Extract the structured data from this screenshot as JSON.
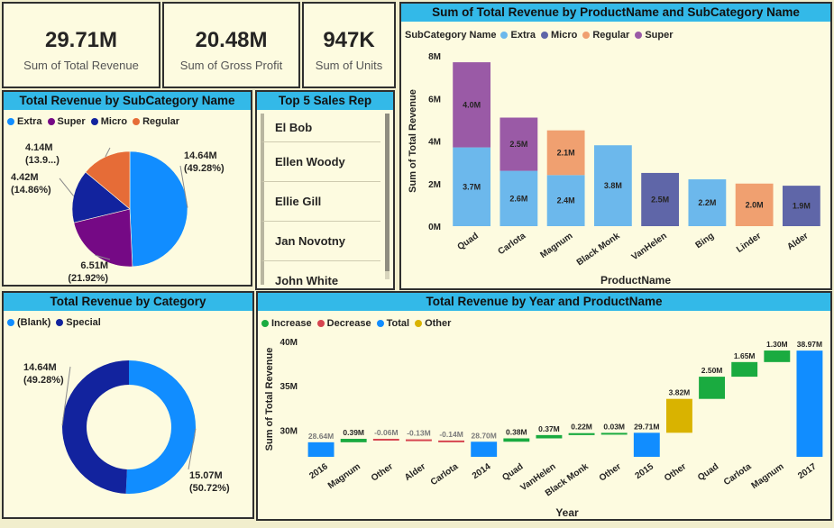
{
  "kpis": [
    {
      "value": "29.71M",
      "label": "Sum of Total Revenue"
    },
    {
      "value": "20.48M",
      "label": "Sum of Gross Profit"
    },
    {
      "value": "947K",
      "label": "Sum of Units"
    }
  ],
  "pie_panel": {
    "title": "Total Revenue by SubCategory Name",
    "legend": [
      {
        "name": "Extra",
        "color": "#118dff"
      },
      {
        "name": "Super",
        "color": "#750985"
      },
      {
        "name": "Micro",
        "color": "#12239e"
      },
      {
        "name": "Regular",
        "color": "#e66c37"
      }
    ]
  },
  "sales_rep_panel": {
    "title": "Top 5 Sales Rep",
    "reps": [
      "El Bob",
      "Ellen Woody",
      "Ellie Gill",
      "Jan Novotny",
      "John White"
    ]
  },
  "bar_panel": {
    "title": "Sum of Total Revenue by ProductName and SubCategory Name",
    "legend_title": "SubCategory Name",
    "legend": [
      {
        "name": "Extra",
        "color": "#6cb8ec"
      },
      {
        "name": "Micro",
        "color": "#5f66a8"
      },
      {
        "name": "Regular",
        "color": "#f0a070"
      },
      {
        "name": "Super",
        "color": "#9a5aa6"
      }
    ]
  },
  "donut_panel": {
    "title": "Total Revenue by Category",
    "legend": [
      {
        "name": "(Blank)",
        "color": "#118dff"
      },
      {
        "name": "Special",
        "color": "#12239e"
      }
    ]
  },
  "waterfall_panel": {
    "title": "Total Revenue by Year and ProductName",
    "legend": [
      {
        "name": "Increase",
        "color": "#1aab40"
      },
      {
        "name": "Decrease",
        "color": "#d64550"
      },
      {
        "name": "Total",
        "color": "#118dff"
      },
      {
        "name": "Other",
        "color": "#d9b300"
      }
    ]
  },
  "chart_data": [
    {
      "type": "pie",
      "title": "Total Revenue by SubCategory Name",
      "slices": [
        {
          "name": "Extra",
          "value": 14.64,
          "label": "14.64M",
          "pct": "(49.28%)",
          "color": "#118dff"
        },
        {
          "name": "Super",
          "value": 6.51,
          "label": "6.51M",
          "pct": "(21.92%)",
          "color": "#750985"
        },
        {
          "name": "Micro",
          "value": 4.42,
          "label": "4.42M",
          "pct": "(14.86%)",
          "color": "#12239e"
        },
        {
          "name": "Regular",
          "value": 4.14,
          "label": "4.14M",
          "pct": "(13.9...)",
          "color": "#e66c37"
        }
      ]
    },
    {
      "type": "bar",
      "stacked": true,
      "title": "Sum of Total Revenue by ProductName and SubCategory Name",
      "xlabel": "ProductName",
      "ylabel": "Sum of Total Revenue",
      "ylim": [
        0,
        8
      ],
      "yticks": [
        "0M",
        "2M",
        "4M",
        "6M",
        "8M"
      ],
      "categories": [
        "Quad",
        "Carlota",
        "Magnum",
        "Black Monk",
        "VanHelen",
        "Bing",
        "Linder",
        "Alder"
      ],
      "segments": [
        [
          {
            "sub": "Extra",
            "value": 3.7,
            "label": "3.7M"
          },
          {
            "sub": "Super",
            "value": 4.0,
            "label": "4.0M"
          }
        ],
        [
          {
            "sub": "Extra",
            "value": 2.6,
            "label": "2.6M"
          },
          {
            "sub": "Super",
            "value": 2.5,
            "label": "2.5M"
          }
        ],
        [
          {
            "sub": "Extra",
            "value": 2.4,
            "label": "2.4M"
          },
          {
            "sub": "Regular",
            "value": 2.1,
            "label": "2.1M"
          }
        ],
        [
          {
            "sub": "Extra",
            "value": 3.8,
            "label": "3.8M"
          }
        ],
        [
          {
            "sub": "Micro",
            "value": 2.5,
            "label": "2.5M"
          }
        ],
        [
          {
            "sub": "Extra",
            "value": 2.2,
            "label": "2.2M"
          }
        ],
        [
          {
            "sub": "Regular",
            "value": 2.0,
            "label": "2.0M"
          }
        ],
        [
          {
            "sub": "Micro",
            "value": 1.9,
            "label": "1.9M"
          }
        ]
      ],
      "colors": {
        "Extra": "#6cb8ec",
        "Micro": "#5f66a8",
        "Regular": "#f0a070",
        "Super": "#9a5aa6"
      }
    },
    {
      "type": "pie",
      "donut": true,
      "title": "Total Revenue by Category",
      "slices": [
        {
          "name": "(Blank)",
          "value": 15.07,
          "label": "15.07M",
          "pct": "(50.72%)",
          "color": "#118dff"
        },
        {
          "name": "Special",
          "value": 14.64,
          "label": "14.64M",
          "pct": "(49.28%)",
          "color": "#12239e"
        }
      ]
    },
    {
      "type": "bar",
      "waterfall": true,
      "title": "Total Revenue by Year and ProductName",
      "xlabel": "Year",
      "ylabel": "Sum of Total Revenue",
      "ylim": [
        27,
        40
      ],
      "yticks": [
        "30M",
        "35M",
        "40M"
      ],
      "ytick_values": [
        30,
        35,
        40
      ],
      "steps": [
        {
          "x": "2016",
          "kind": "Total",
          "start": 27.0,
          "end": 28.64,
          "label": "28.64M"
        },
        {
          "x": "Magnum",
          "kind": "Increase",
          "start": 28.64,
          "end": 29.03,
          "label": "0.39M"
        },
        {
          "x": "Other",
          "kind": "Decrease",
          "start": 29.03,
          "end": 28.97,
          "label": "-0.06M"
        },
        {
          "x": "Alder",
          "kind": "Decrease",
          "start": 28.97,
          "end": 28.84,
          "label": "-0.13M"
        },
        {
          "x": "Carlota",
          "kind": "Decrease",
          "start": 28.84,
          "end": 28.7,
          "label": "-0.14M"
        },
        {
          "x": "2014",
          "kind": "Total",
          "start": 27.0,
          "end": 28.7,
          "label": "28.70M"
        },
        {
          "x": "Quad",
          "kind": "Increase",
          "start": 28.7,
          "end": 29.08,
          "label": "0.38M"
        },
        {
          "x": "VanHelen",
          "kind": "Increase",
          "start": 29.08,
          "end": 29.45,
          "label": "0.37M"
        },
        {
          "x": "Black Monk",
          "kind": "Increase",
          "start": 29.45,
          "end": 29.67,
          "label": "0.22M"
        },
        {
          "x": "Other",
          "kind": "Increase",
          "start": 29.67,
          "end": 29.7,
          "label": "0.03M"
        },
        {
          "x": "2015",
          "kind": "Total",
          "start": 27.0,
          "end": 29.71,
          "label": "29.71M"
        },
        {
          "x": "Other",
          "kind": "Other",
          "start": 29.71,
          "end": 33.53,
          "label": "3.82M"
        },
        {
          "x": "Quad",
          "kind": "Increase",
          "start": 33.53,
          "end": 36.03,
          "label": "2.50M"
        },
        {
          "x": "Carlota",
          "kind": "Increase",
          "start": 36.03,
          "end": 37.68,
          "label": "1.65M"
        },
        {
          "x": "Magnum",
          "kind": "Increase",
          "start": 37.68,
          "end": 38.98,
          "label": "1.30M"
        },
        {
          "x": "2017",
          "kind": "Total",
          "start": 27.0,
          "end": 38.97,
          "label": "38.97M"
        }
      ],
      "colors": {
        "Increase": "#1aab40",
        "Decrease": "#d64550",
        "Total": "#118dff",
        "Other": "#d9b300"
      }
    }
  ]
}
